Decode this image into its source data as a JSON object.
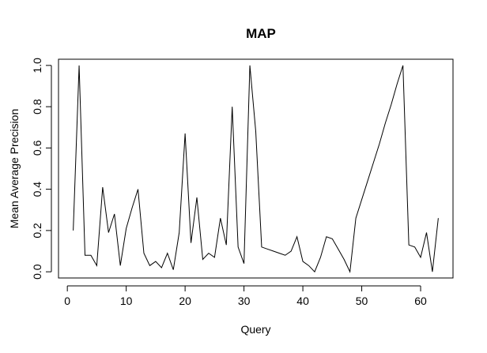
{
  "chart_data": {
    "type": "line",
    "title": "MAP",
    "xlabel": "Query",
    "ylabel": "Mean Average Precision",
    "xlim": [
      -1.5,
      65.5
    ],
    "ylim": [
      -0.03,
      1.03
    ],
    "xticks": [
      0,
      10,
      20,
      30,
      40,
      50,
      60
    ],
    "yticks": [
      0.0,
      0.2,
      0.4,
      0.6,
      0.8,
      1.0
    ],
    "xtick_labels": [
      "0",
      "10",
      "20",
      "30",
      "40",
      "50",
      "60"
    ],
    "ytick_labels": [
      "0.0",
      "0.2",
      "0.4",
      "0.6",
      "0.8",
      "1.0"
    ],
    "grid": false,
    "series": [
      {
        "x": [
          1,
          2,
          3,
          4,
          5,
          6,
          7,
          8,
          9,
          10,
          11,
          12,
          13,
          14,
          15,
          16,
          17,
          18,
          19,
          20,
          21,
          22,
          23,
          24,
          25,
          26,
          27,
          28,
          29,
          30,
          31,
          32,
          33,
          34,
          35,
          36,
          37,
          38,
          39,
          40,
          41,
          42,
          43,
          44,
          45,
          46,
          47,
          48,
          49,
          50,
          51,
          52,
          53,
          54,
          55,
          56,
          57,
          58,
          59,
          60,
          61,
          62,
          63
        ],
        "values": [
          0.2,
          1.0,
          0.08,
          0.08,
          0.03,
          0.41,
          0.19,
          0.28,
          0.03,
          0.21,
          0.31,
          0.4,
          0.09,
          0.03,
          0.05,
          0.02,
          0.09,
          0.01,
          0.19,
          0.67,
          0.14,
          0.36,
          0.06,
          0.09,
          0.07,
          0.26,
          0.13,
          0.8,
          0.12,
          0.04,
          1.0,
          0.68,
          0.12,
          0.11,
          0.1,
          0.09,
          0.08,
          0.1,
          0.17,
          0.05,
          0.03,
          0.0,
          0.07,
          0.17,
          0.16,
          0.11,
          0.06,
          0.0,
          0.26,
          0.35,
          0.44,
          0.53,
          0.62,
          0.72,
          0.81,
          0.91,
          1.0,
          0.13,
          0.12,
          0.07,
          0.19,
          0.0,
          0.26
        ]
      }
    ]
  }
}
